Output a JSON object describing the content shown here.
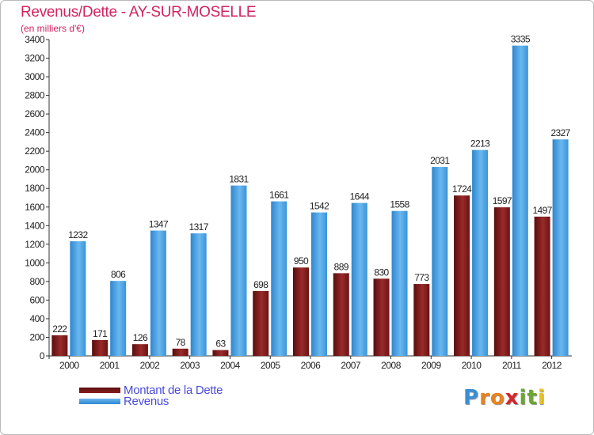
{
  "header": {
    "title": "Revenus/Dette - AY-SUR-MOSELLE",
    "subtitle": "(en milliers d'€)"
  },
  "chart_data": {
    "type": "bar",
    "title": "Revenus/Dette - AY-SUR-MOSELLE",
    "ylabel": "(en milliers d'€)",
    "xlabel": "",
    "categories": [
      "2000",
      "2001",
      "2002",
      "2003",
      "2004",
      "2005",
      "2006",
      "2007",
      "2008",
      "2009",
      "2010",
      "2011",
      "2012"
    ],
    "series": [
      {
        "name": "Montant de la Dette",
        "color": "#7a1a1a",
        "values": [
          222,
          171,
          126,
          78,
          63,
          698,
          950,
          889,
          830,
          773,
          1724,
          1597,
          1497
        ],
        "labels": [
          "222",
          "171",
          "126",
          "78",
          "63",
          "698",
          "950",
          "889",
          "830",
          "773",
          "1724",
          "1597",
          "1497"
        ]
      },
      {
        "name": "Revenus",
        "color": "#4aa3e6",
        "values": [
          1232,
          806,
          1347,
          1317,
          1831,
          1661,
          1542,
          1644,
          1558,
          2031,
          2213,
          3335,
          2327
        ],
        "labels": [
          "1232",
          "806",
          "1347",
          "1317",
          "1831",
          "1661",
          "1542",
          "1644",
          "1558",
          "2031",
          "2213",
          "3335",
          "2327"
        ]
      }
    ],
    "ylim": [
      0,
      3400
    ],
    "yticks": [
      "0",
      "200",
      "400",
      "600",
      "800",
      "1000",
      "1200",
      "1400",
      "1600",
      "1800",
      "2000",
      "2200",
      "2400",
      "2600",
      "2800",
      "3000",
      "3200",
      "3400"
    ],
    "grid": false,
    "legend_position": "bottom-left"
  },
  "legend": {
    "items": [
      {
        "label": "Montant de la Dette",
        "color": "#7a1a1a"
      },
      {
        "label": "Revenus",
        "color": "#4aa3e6"
      }
    ]
  },
  "logo": {
    "letters": [
      "P",
      "r",
      "o",
      "x",
      "i",
      "t",
      "i"
    ],
    "colors": [
      "#3a8fd6",
      "#e8821e",
      "#e8821e",
      "#d6262b",
      "#6aa82d",
      "#6aa82d",
      "#e8c21e"
    ]
  }
}
